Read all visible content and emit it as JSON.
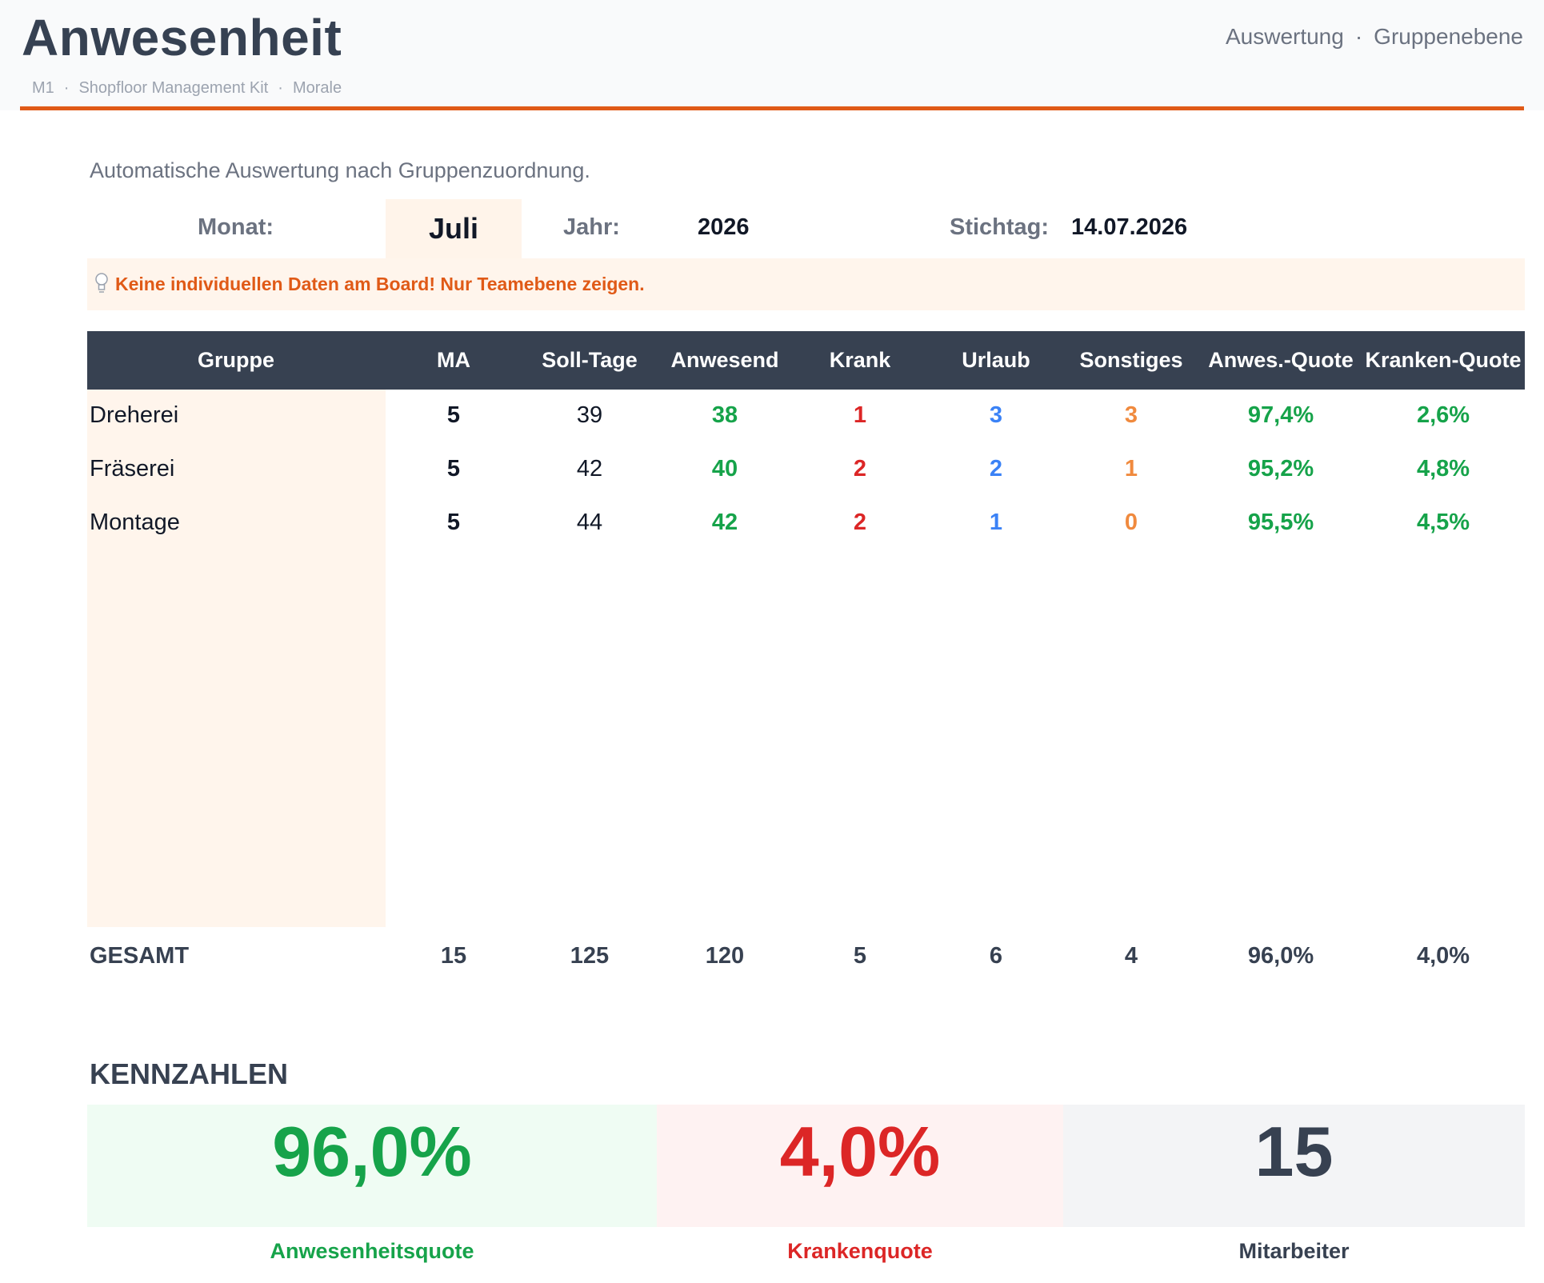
{
  "header": {
    "title": "Anwesenheit",
    "breadcrumb": [
      "M1",
      "Shopfloor Management Kit",
      "Morale"
    ],
    "breadcrumb_sep": "·",
    "nav": [
      "Auswertung",
      "Gruppenebene"
    ],
    "nav_sep": "·"
  },
  "subtitle": "Automatische Auswertung nach Gruppenzuordnung.",
  "filters": {
    "month_label": "Monat:",
    "month_value": "Juli",
    "year_label": "Jahr:",
    "year_value": "2026",
    "date_label": "Stichtag:",
    "date_value": "14.07.2026"
  },
  "hint": {
    "icon": "lightbulb-icon",
    "text": "Keine individuellen Daten am Board! Nur Teamebene zeigen."
  },
  "table": {
    "columns": [
      "Gruppe",
      "MA",
      "Soll-Tage",
      "Anwesend",
      "Krank",
      "Urlaub",
      "Sonstiges",
      "Anwes.-Quote",
      "Kranken-Quote"
    ],
    "rows": [
      {
        "gruppe": "Dreherei",
        "ma": "5",
        "soll": "39",
        "anwesend": "38",
        "krank": "1",
        "urlaub": "3",
        "sonstiges": "3",
        "quote": "97,4%",
        "kquote": "2,6%"
      },
      {
        "gruppe": "Fräserei",
        "ma": "5",
        "soll": "42",
        "anwesend": "40",
        "krank": "2",
        "urlaub": "2",
        "sonstiges": "1",
        "quote": "95,2%",
        "kquote": "4,8%"
      },
      {
        "gruppe": "Montage",
        "ma": "5",
        "soll": "44",
        "anwesend": "42",
        "krank": "2",
        "urlaub": "1",
        "sonstiges": "0",
        "quote": "95,5%",
        "kquote": "4,5%"
      }
    ],
    "total": {
      "label": "GESAMT",
      "ma": "15",
      "soll": "125",
      "anwesend": "120",
      "krank": "5",
      "urlaub": "6",
      "sonstiges": "4",
      "quote": "96,0%",
      "kquote": "4,0%"
    }
  },
  "kpis": {
    "title": "KENNZAHLEN",
    "items": [
      {
        "value": "96,0%",
        "label": "Anwesenheitsquote",
        "color": "#16a34a",
        "bg": "#effcf3"
      },
      {
        "value": "4,0%",
        "label": "Krankenquote",
        "color": "#dc2626",
        "bg": "#fef2f2"
      },
      {
        "value": "15",
        "label": "Mitarbeiter",
        "color": "#374151",
        "bg": "#f3f4f6"
      }
    ]
  },
  "colors": {
    "accent": "#e05a17",
    "header_bg": "#374151",
    "green": "#16a34a",
    "red": "#dc2626",
    "blue": "#3b82f6",
    "orange": "#f08a3e"
  }
}
